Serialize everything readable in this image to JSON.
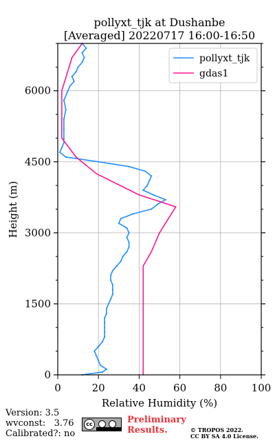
{
  "chart_data": {
    "type": "line",
    "title": "pollyxt_tjk at Dushanbe",
    "subtitle": "[Averaged] 20220717 16:00-16:50",
    "xlabel": "Relative Humidity (%)",
    "ylabel": "Height (m)",
    "xlim": [
      0,
      100
    ],
    "ylim": [
      0,
      7000
    ],
    "xticks": [
      0,
      20,
      40,
      60,
      80,
      100
    ],
    "yticks": [
      0,
      1500,
      3000,
      4500,
      6000
    ],
    "grid": true,
    "legend_position": "top-right",
    "series": [
      {
        "name": "pollyxt_tjk",
        "color": "#1f8fff",
        "profile": [
          [
            0,
            12
          ],
          [
            60,
            22
          ],
          [
            120,
            24
          ],
          [
            200,
            21
          ],
          [
            300,
            20
          ],
          [
            400,
            19
          ],
          [
            500,
            18
          ],
          [
            600,
            20
          ],
          [
            700,
            22
          ],
          [
            800,
            23
          ],
          [
            900,
            23
          ],
          [
            1000,
            23
          ],
          [
            1100,
            23
          ],
          [
            1200,
            23
          ],
          [
            1300,
            24
          ],
          [
            1400,
            24
          ],
          [
            1500,
            25
          ],
          [
            1600,
            26
          ],
          [
            1700,
            27
          ],
          [
            1800,
            27
          ],
          [
            1900,
            27
          ],
          [
            2000,
            26
          ],
          [
            2100,
            26
          ],
          [
            2200,
            27
          ],
          [
            2300,
            29
          ],
          [
            2400,
            31
          ],
          [
            2500,
            32
          ],
          [
            2600,
            34
          ],
          [
            2700,
            35
          ],
          [
            2800,
            35
          ],
          [
            2900,
            34
          ],
          [
            3000,
            35
          ],
          [
            3100,
            34
          ],
          [
            3200,
            30
          ],
          [
            3300,
            31
          ],
          [
            3400,
            37
          ],
          [
            3500,
            46
          ],
          [
            3600,
            49
          ],
          [
            3700,
            53
          ],
          [
            3800,
            47
          ],
          [
            3900,
            42
          ],
          [
            4000,
            44
          ],
          [
            4100,
            45
          ],
          [
            4200,
            46
          ],
          [
            4300,
            43
          ],
          [
            4400,
            35
          ],
          [
            4500,
            20
          ],
          [
            4600,
            4
          ],
          [
            4700,
            1
          ],
          [
            4800,
            2
          ],
          [
            4900,
            3
          ],
          [
            5000,
            3
          ],
          [
            5200,
            3
          ],
          [
            5400,
            3
          ],
          [
            5600,
            4
          ],
          [
            5800,
            3
          ],
          [
            6000,
            5
          ],
          [
            6100,
            6
          ],
          [
            6200,
            8
          ],
          [
            6300,
            7
          ],
          [
            6400,
            9
          ],
          [
            6500,
            10
          ],
          [
            6600,
            12
          ],
          [
            6700,
            13
          ],
          [
            6800,
            12
          ],
          [
            6900,
            14
          ],
          [
            7000,
            12
          ]
        ]
      },
      {
        "name": "gdas1",
        "color": "#ff1493",
        "profile": [
          [
            0,
            42
          ],
          [
            2300,
            42
          ],
          [
            2600,
            46
          ],
          [
            3000,
            50
          ],
          [
            3550,
            58
          ],
          [
            3800,
            40
          ],
          [
            4250,
            19
          ],
          [
            4600,
            9
          ],
          [
            5000,
            2
          ],
          [
            6000,
            2
          ],
          [
            6700,
            7
          ],
          [
            7000,
            12
          ]
        ]
      }
    ]
  },
  "footer": {
    "version": "Version: 3.5",
    "wvconst": "wvconst:   3.76",
    "calibrated": "Calibrated?: no",
    "preliminary_line1": "Preliminary",
    "preliminary_line2": "Results.",
    "copyright": "© TROPOS 2022.",
    "license": "CC BY SA 4.0 License."
  },
  "badge": {
    "logo_text": "cc"
  }
}
